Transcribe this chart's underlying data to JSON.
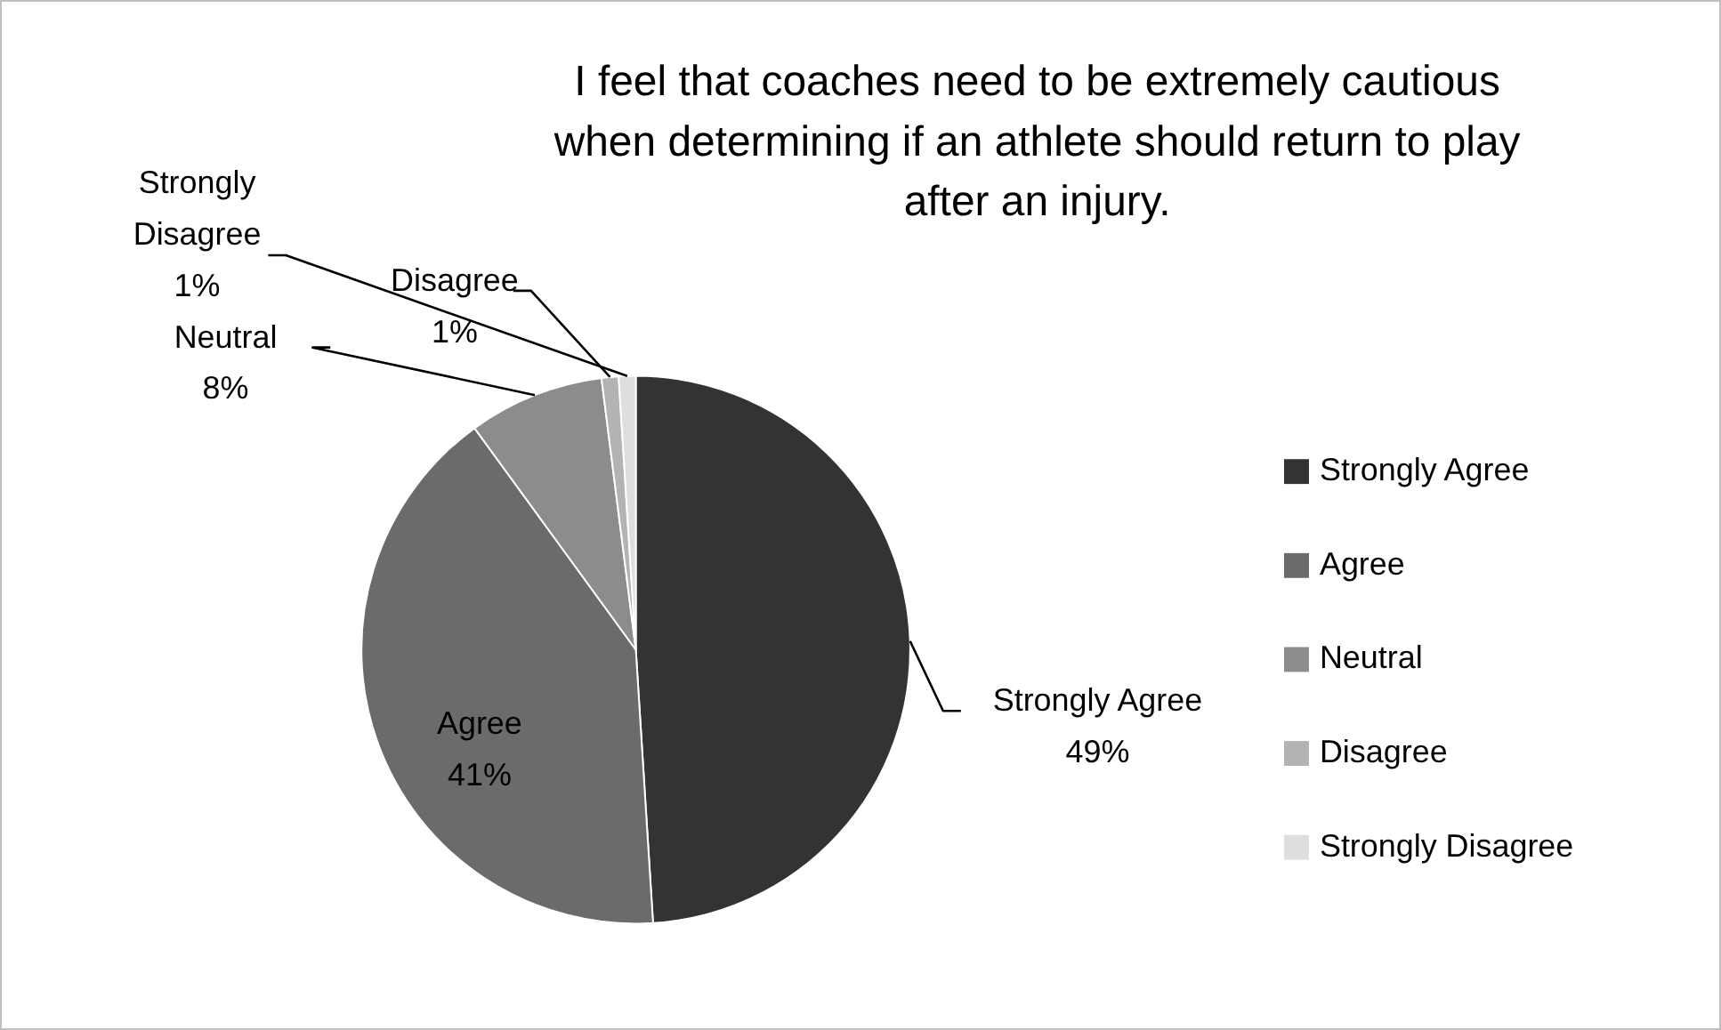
{
  "chart_data": {
    "type": "pie",
    "title": "I feel that coaches need to be extremely cautious when determining if an athlete should return to play after an injury.",
    "categories": [
      "Strongly Agree",
      "Agree",
      "Neutral",
      "Disagree",
      "Strongly Disagree"
    ],
    "values": [
      49,
      41,
      8,
      1,
      1
    ],
    "value_labels": [
      "49%",
      "41%",
      "8%",
      "1%",
      "1%"
    ],
    "colors": [
      "#333333",
      "#6b6b6b",
      "#8c8c8c",
      "#b3b3b3",
      "#dedede"
    ],
    "legend": "right"
  }
}
